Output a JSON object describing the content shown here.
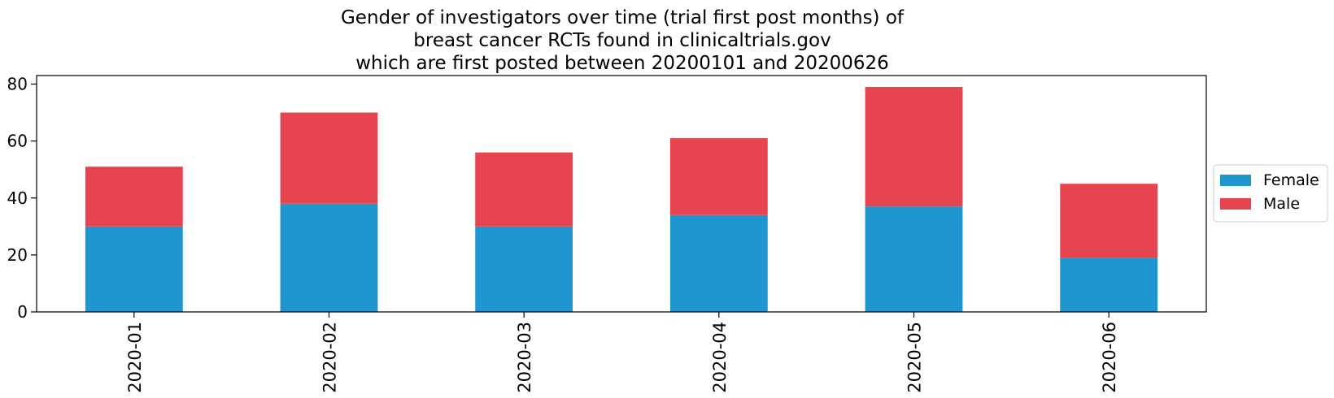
{
  "chart_data": {
    "type": "bar",
    "stacked": true,
    "title_lines": [
      "Gender of investigators over time (trial first post months) of",
      "breast cancer RCTs found in clinicaltrials.gov",
      "which are first posted between 20200101 and 20200626"
    ],
    "categories": [
      "2020-01",
      "2020-02",
      "2020-03",
      "2020-04",
      "2020-05",
      "2020-06"
    ],
    "series": [
      {
        "name": "Female",
        "color": "#2096CE",
        "values": [
          30,
          38,
          30,
          34,
          37,
          19
        ]
      },
      {
        "name": "Male",
        "color": "#E64550",
        "values": [
          21,
          32,
          26,
          27,
          42,
          26
        ]
      }
    ],
    "ylim": [
      0,
      83
    ],
    "yticks": [
      0,
      20,
      40,
      60,
      80
    ],
    "xlabel": "",
    "ylabel": "",
    "grid": false,
    "legend_position": "right"
  }
}
